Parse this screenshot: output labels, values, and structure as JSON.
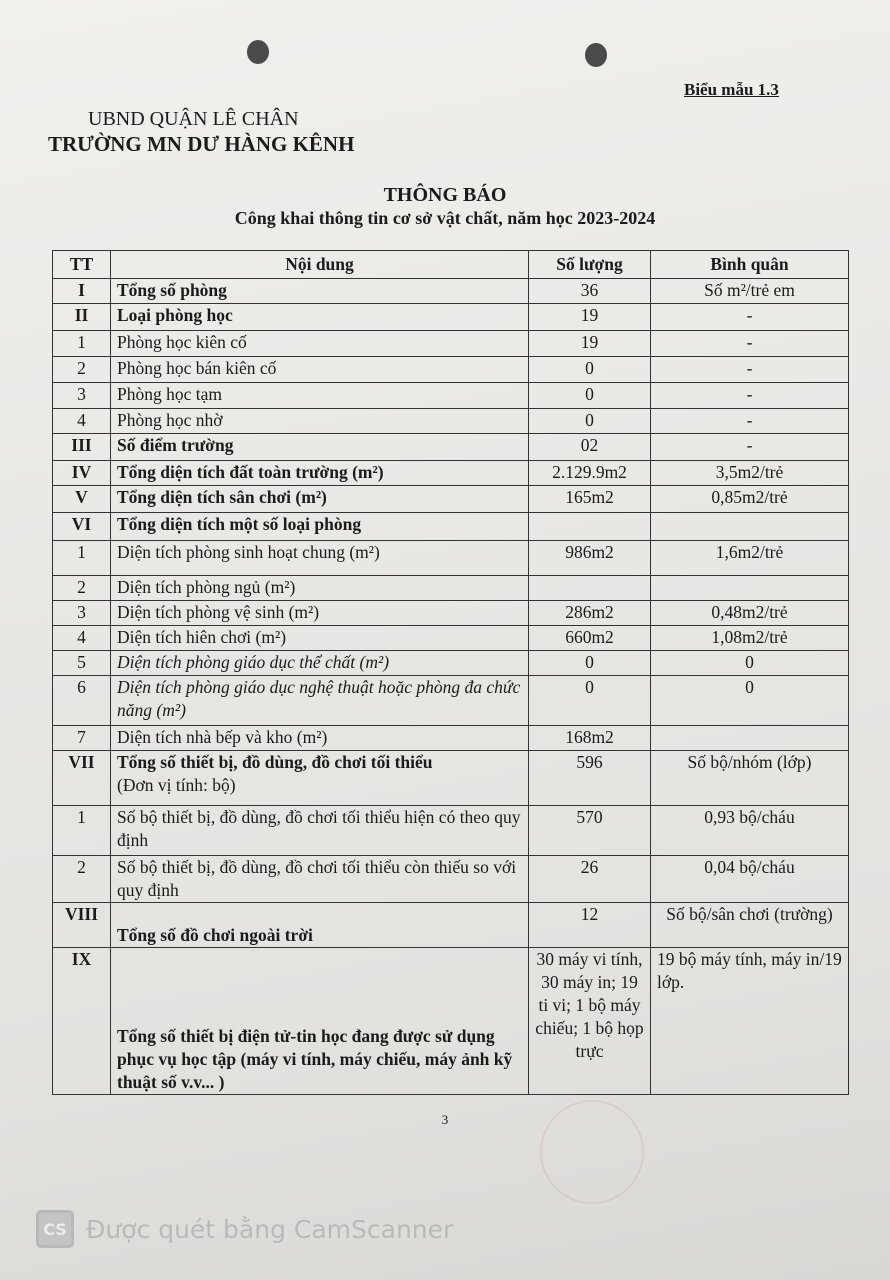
{
  "header": {
    "form_code": "Biểu mẫu 1.3",
    "agency": "UBND QUẬN LÊ CHÂN",
    "school": "TRƯỜNG MN DƯ HÀNG KÊNH",
    "title": "THÔNG BÁO",
    "subtitle": "Công khai thông tin cơ sở vật chất, năm học 2023-2024"
  },
  "table": {
    "columns": [
      "TT",
      "Nội dung",
      "Số lượng",
      "Bình quân"
    ],
    "rows": [
      {
        "tt": "I",
        "content": "Tổng số phòng",
        "qty": "36",
        "avg": "Số m²/trẻ em",
        "bold": true
      },
      {
        "tt": "II",
        "content": "Loại phòng học",
        "qty": "19",
        "avg": "-",
        "bold": true
      },
      {
        "tt": "1",
        "content": "Phòng học kiên cố",
        "qty": "19",
        "avg": "-"
      },
      {
        "tt": "2",
        "content": "Phòng học bán kiên cố",
        "qty": "0",
        "avg": "-"
      },
      {
        "tt": "3",
        "content": "Phòng học tạm",
        "qty": "0",
        "avg": "-"
      },
      {
        "tt": "4",
        "content": "Phòng học nhờ",
        "qty": "0",
        "avg": "-"
      },
      {
        "tt": "III",
        "content": "Số điểm trường",
        "qty": "02",
        "avg": "-",
        "bold": true
      },
      {
        "tt": "IV",
        "content": "Tổng diện tích đất toàn trường (m²)",
        "qty": "2.129.9m2",
        "avg": "3,5m2/trẻ",
        "bold": true
      },
      {
        "tt": "V",
        "content": "Tổng diện tích sân chơi (m²)",
        "qty": "165m2",
        "avg": "0,85m2/trẻ",
        "bold": true
      },
      {
        "tt": "VI",
        "content": "Tổng diện tích một số loại phòng",
        "qty": "",
        "avg": "",
        "bold": true
      },
      {
        "tt": "1",
        "content": "Diện tích phòng sinh hoạt chung (m²)",
        "qty": "986m2",
        "avg": "1,6m2/trẻ"
      },
      {
        "tt": "2",
        "content": "Diện tích phòng ngủ (m²)",
        "qty": "",
        "avg": ""
      },
      {
        "tt": "3",
        "content": "Diện tích phòng vệ sinh (m²)",
        "qty": "286m2",
        "avg": "0,48m2/trẻ"
      },
      {
        "tt": "4",
        "content": "Diện tích hiên chơi (m²)",
        "qty": "660m2",
        "avg": "1,08m2/trẻ"
      },
      {
        "tt": "5",
        "content": "Diện tích phòng giáo dục thể chất (m²)",
        "qty": "0",
        "avg": "0",
        "italic": true
      },
      {
        "tt": "6",
        "content": "Diện tích phòng giáo dục nghệ thuật hoặc phòng đa chức năng (m²)",
        "qty": "0",
        "avg": "0",
        "italic": true
      },
      {
        "tt": "7",
        "content": "Diện tích nhà bếp và kho (m²)",
        "qty": "168m2",
        "avg": ""
      },
      {
        "tt": "VII",
        "content": "Tổng số thiết bị, đồ dùng, đồ chơi tối thiểu",
        "content_note": "(Đơn vị tính: bộ)",
        "qty": "596",
        "avg": "Số bộ/nhóm (lớp)",
        "bold": true
      },
      {
        "tt": "1",
        "content": "Số bộ thiết bị, đồ dùng, đồ chơi tối thiểu hiện có theo quy định",
        "qty": "570",
        "avg": "0,93 bộ/cháu"
      },
      {
        "tt": "2",
        "content": "Số bộ thiết bị, đồ dùng, đồ chơi tối thiểu còn thiếu so với quy định",
        "qty": "26",
        "avg": "0,04 bộ/cháu"
      },
      {
        "tt": "VIII",
        "content": "Tổng số đồ chơi ngoài trời",
        "qty": "12",
        "avg": "Số bộ/sân chơi (trường)",
        "bold": true
      },
      {
        "tt": "IX",
        "content": "Tổng số thiết bị điện tử-tin học đang được sử dụng phục vụ học tập (máy vi tính, máy chiếu, máy ảnh kỹ thuật số v.v... )",
        "qty": "30 máy vi tính, 30 máy in; 19 ti vi; 1 bộ máy chiếu; 1 bộ họp trực",
        "avg": "19 bộ máy tính, máy in/19 lớp.",
        "bold": true
      }
    ]
  },
  "footer": {
    "page_number": "3",
    "watermark_logo": "CS",
    "watermark_text": "Được quét bằng CamScanner"
  }
}
